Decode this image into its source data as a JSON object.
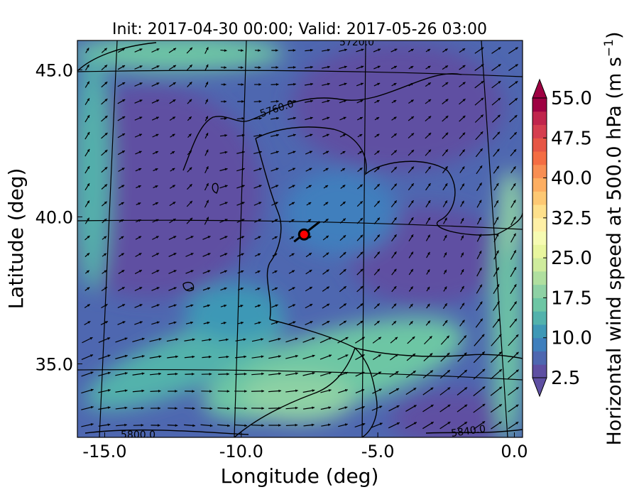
{
  "chart_data": {
    "type": "heatmap",
    "title": "Init: 2017-04-30 00:00; Valid: 2017-05-26 03:00",
    "xlabel": "Longitude (deg)",
    "ylabel": "Latitude (deg)",
    "xlim": [
      -16.0,
      0.3
    ],
    "ylim": [
      32.5,
      46.0
    ],
    "x_ticks": [
      -15.0,
      -10.0,
      -5.0,
      0.0
    ],
    "x_tick_labels": [
      "-15.0",
      "-10.0",
      "-5.0",
      "0.0"
    ],
    "y_ticks": [
      35.0,
      40.0,
      45.0
    ],
    "y_tick_labels": [
      "35.0",
      "40.0",
      "45.0"
    ],
    "colorbar": {
      "label": "Horizontal wind speed at 500.0 hPa (m s",
      "label_superscript": "−1",
      "label_end": ")",
      "min": 2.5,
      "max": 55.0,
      "step": 2.5,
      "extend": "both",
      "ticks": [
        2.5,
        10.0,
        17.5,
        25.0,
        32.5,
        40.0,
        47.5,
        55.0
      ],
      "tick_labels": [
        "2.5",
        "10.0",
        "17.5",
        "25.0",
        "32.5",
        "40.0",
        "47.5",
        "55.0"
      ],
      "colormap": "Spectral_r",
      "colors": [
        "#5e4fa2",
        "#4e67b0",
        "#3f7fbd",
        "#3e98b6",
        "#52b2ac",
        "#6dc6a4",
        "#8ed1a4",
        "#b0df9f",
        "#cfec9d",
        "#e9f69e",
        "#f6fbb2",
        "#fff0a6",
        "#fee08b",
        "#fdc873",
        "#fdae61",
        "#f88e53",
        "#f46d43",
        "#e65645",
        "#d53e4f",
        "#c0254c",
        "#9e0142"
      ]
    },
    "contour_labels": [
      "5760.0",
      "5800.0",
      "5840.0",
      "5720.0"
    ],
    "marker": {
      "lon": -7.7,
      "lat": 39.4,
      "color": "#ff0000"
    },
    "series": [
      {
        "name": "wind-speed-field",
        "values": []
      }
    ]
  }
}
